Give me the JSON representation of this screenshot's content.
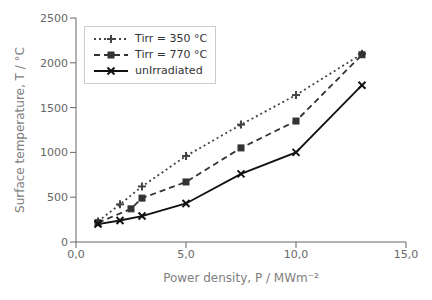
{
  "chart_data": {
    "type": "line",
    "series": [
      {
        "name": "Tirr = 350 °C",
        "color": "#444444",
        "line_style": "dotted",
        "marker": "plus",
        "x": [
          1.0,
          2.0,
          3.0,
          5.0,
          7.5,
          10.0,
          13.0
        ],
        "values": [
          230,
          420,
          620,
          960,
          1310,
          1640,
          2100
        ]
      },
      {
        "name": "Tirr = 770 °C",
        "color": "#333333",
        "line_style": "dashed",
        "marker": "square",
        "x": [
          1.0,
          2.5,
          3.0,
          5.0,
          7.5,
          10.0,
          13.0
        ],
        "values": [
          215,
          370,
          490,
          670,
          1050,
          1350,
          2090
        ]
      },
      {
        "name": "unIrradiated",
        "color": "#111111",
        "line_style": "solid",
        "marker": "x",
        "x": [
          1.0,
          2.0,
          3.0,
          5.0,
          7.5,
          10.0,
          13.0
        ],
        "values": [
          200,
          240,
          290,
          430,
          760,
          1000,
          1750
        ]
      }
    ],
    "xlabel": "Power density, P / MWm⁻²",
    "ylabel": "Surface temperature, T / °C",
    "xlim": [
      0.0,
      15.0
    ],
    "ylim": [
      0,
      2500
    ],
    "xticks": [
      {
        "value": 0.0,
        "label": "0,0"
      },
      {
        "value": 5.0,
        "label": "5,0"
      },
      {
        "value": 10.0,
        "label": "10,0"
      },
      {
        "value": 15.0,
        "label": "15,0"
      }
    ],
    "yticks": [
      0,
      500,
      1000,
      1500,
      2000,
      2500
    ],
    "legend": "upper left",
    "grid": false
  }
}
